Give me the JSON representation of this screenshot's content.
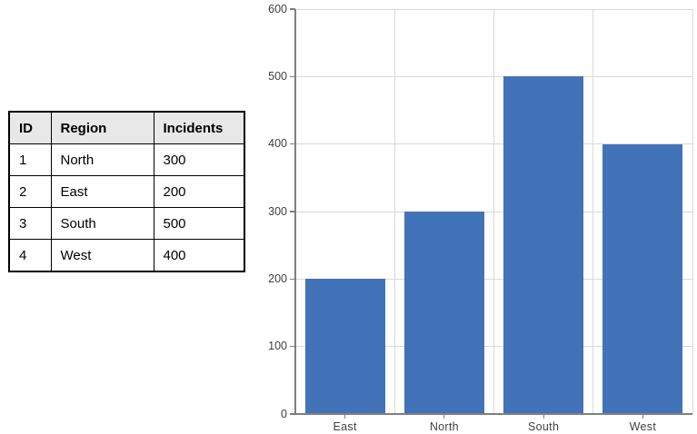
{
  "table": {
    "headers": [
      "ID",
      "Region",
      "Incidents"
    ],
    "rows": [
      {
        "id": "1",
        "region": "North",
        "incidents": "300"
      },
      {
        "id": "2",
        "region": "East",
        "incidents": "200"
      },
      {
        "id": "3",
        "region": "South",
        "incidents": "500"
      },
      {
        "id": "4",
        "region": "West",
        "incidents": "400"
      }
    ],
    "header_bg": "#e8e8e8",
    "border_color": "#000000"
  },
  "chart_data": {
    "type": "bar",
    "categories": [
      "East",
      "North",
      "South",
      "West"
    ],
    "values": [
      200,
      300,
      500,
      400
    ],
    "title": "",
    "xlabel": "",
    "ylabel": "",
    "ylim": [
      0,
      600
    ],
    "ytick_step": 100,
    "ytick_labels": [
      "0",
      "100",
      "200",
      "300",
      "400",
      "500",
      "600"
    ],
    "grid": true,
    "legend": "none",
    "bar_color": "#4273b8",
    "gridline_color": "#d9d9d9",
    "axis_color": "#7f7f7f",
    "label_color": "#404040"
  }
}
